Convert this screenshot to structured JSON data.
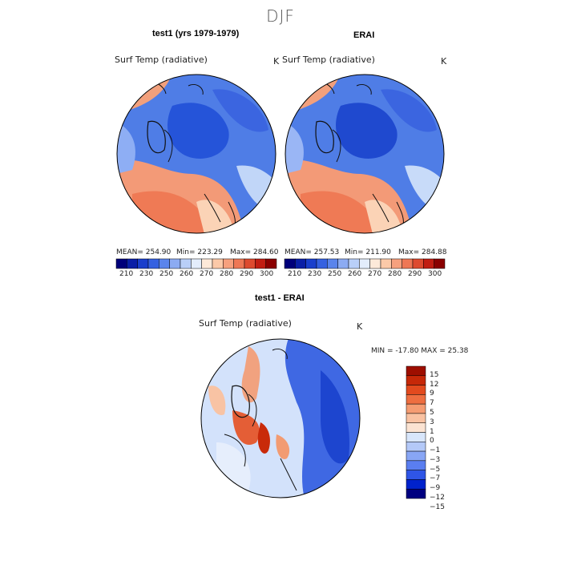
{
  "figure_title": "DJF",
  "panels": {
    "left": {
      "title": "test1 (yrs 1979-1979)",
      "variable": "Surf Temp (radiative)",
      "units": "K",
      "mean_label": "MEAN= 254.90",
      "min_label": "Min= 223.29",
      "max_label": "Max= 284.60"
    },
    "right": {
      "title": "ERAI",
      "variable": "Surf Temp (radiative)",
      "units": "K",
      "mean_label": "MEAN= 257.53",
      "min_label": "Min= 211.90",
      "max_label": "Max= 284.88"
    },
    "diff": {
      "title": "test1 - ERAI",
      "variable": "Surf Temp (radiative)",
      "units": "K",
      "minmax_label": "MIN = -17.80 MAX =  25.38"
    }
  },
  "abs_colorbar": {
    "colors": [
      "#00007a",
      "#0a1fa6",
      "#1a3fcc",
      "#3561e0",
      "#5a84ec",
      "#8cabf2",
      "#b9cff8",
      "#e3edfb",
      "#fde9d9",
      "#fbc9a8",
      "#f6a07e",
      "#ee7755",
      "#dd4a2f",
      "#c11d12",
      "#8a0000"
    ],
    "labels": [
      "210",
      "230",
      "250",
      "260",
      "270",
      "280",
      "290",
      "300"
    ]
  },
  "diff_colorbar": {
    "colors": [
      "#000080",
      "#0022cc",
      "#2f55e6",
      "#5a7ef0",
      "#88a6f5",
      "#b4c9f8",
      "#d8e6fb",
      "#fbe3d2",
      "#f9c2a2",
      "#f59c72",
      "#ee6e40",
      "#e24a1e",
      "#c62808",
      "#9e0e00"
    ],
    "labels": [
      "15",
      "12",
      "9",
      "7",
      "5",
      "3",
      "1",
      "0",
      "−1",
      "−3",
      "−5",
      "−7",
      "−9",
      "−12",
      "−15"
    ]
  },
  "chart_data": [
    {
      "type": "map",
      "projection": "north polar stereographic",
      "title": "test1 (yrs 1979-1979)",
      "variable": "Surf Temp (radiative)",
      "units": "K",
      "mean": 254.9,
      "min": 223.29,
      "max": 284.6
    },
    {
      "type": "map",
      "projection": "north polar stereographic",
      "title": "ERAI",
      "variable": "Surf Temp (radiative)",
      "units": "K",
      "mean": 257.53,
      "min": 211.9,
      "max": 284.88
    },
    {
      "type": "map",
      "projection": "north polar stereographic",
      "title": "test1 - ERAI",
      "variable": "Surf Temp (radiative)",
      "units": "K",
      "min": -17.8,
      "max": 25.38
    }
  ]
}
